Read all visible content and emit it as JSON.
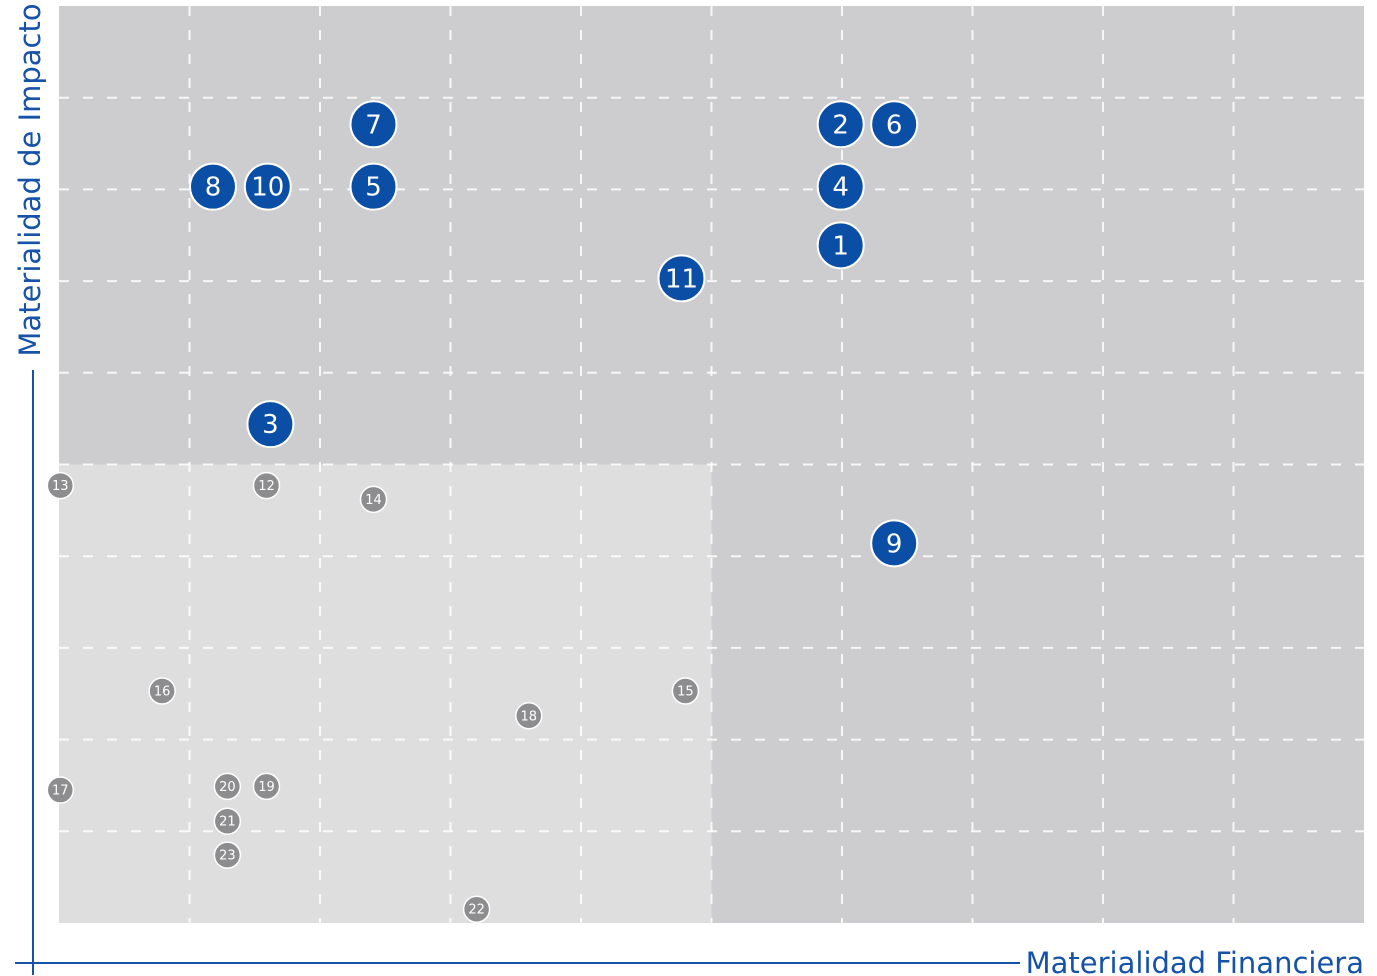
{
  "chart_data": {
    "type": "scatter",
    "x_label": "Materialidad Financiera",
    "y_label": "Materialidad de Impacto",
    "xlim": [
      0,
      10
    ],
    "ylim": [
      0,
      10
    ],
    "xticks": [
      1,
      2,
      3,
      4,
      5,
      6,
      7,
      8,
      9
    ],
    "yticks": [
      1,
      2,
      3,
      4,
      5,
      6,
      7,
      8,
      9
    ],
    "grid": true,
    "highlight_region": {
      "xlim": [
        0,
        5
      ],
      "ylim": [
        0,
        5
      ],
      "color": "#dededf"
    },
    "background_color": "#cdcdcf",
    "series": [
      {
        "color": "#0a4ea6",
        "size": "large",
        "labels": [
          "7",
          "2",
          "6",
          "8",
          "10",
          "5",
          "4",
          "1",
          "11",
          "3",
          "9"
        ],
        "x": [
          2.41,
          5.99,
          6.4,
          1.18,
          1.6,
          2.41,
          5.99,
          5.99,
          4.77,
          1.62,
          6.4
        ],
        "values": [
          8.71,
          8.71,
          8.71,
          8.03,
          8.03,
          8.03,
          8.03,
          7.39,
          7.03,
          5.44,
          4.14
        ]
      },
      {
        "color": "#8d8d8f",
        "size": "small",
        "labels": [
          "13",
          "12",
          "14",
          "16",
          "15",
          "18",
          "17",
          "20",
          "19",
          "21",
          "23",
          "22"
        ],
        "x": [
          0.01,
          1.59,
          2.41,
          0.79,
          4.8,
          3.6,
          0.01,
          1.29,
          1.59,
          1.29,
          1.29,
          3.2
        ],
        "values": [
          4.77,
          4.77,
          4.62,
          2.53,
          2.53,
          2.26,
          1.45,
          1.49,
          1.49,
          1.11,
          0.74,
          0.15
        ]
      }
    ]
  }
}
